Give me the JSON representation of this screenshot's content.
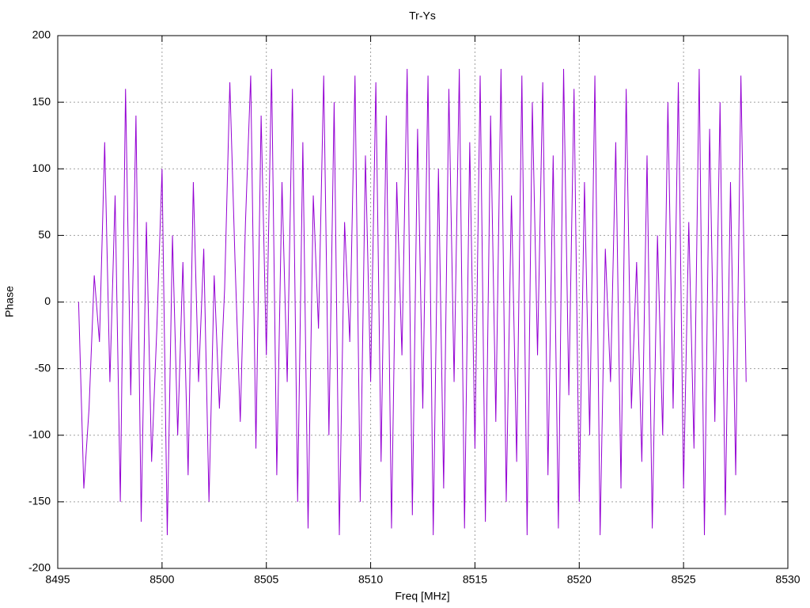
{
  "chart_data": {
    "type": "line",
    "title": "Tr-Ys",
    "x_label": "Freq [MHz]",
    "y_label": "Phase",
    "x": [
      8496,
      8496.25,
      8496.5,
      8496.75,
      8497,
      8497.25,
      8497.5,
      8497.75,
      8498,
      8498.25,
      8498.5,
      8498.75,
      8499,
      8499.25,
      8499.5,
      8499.75,
      8500,
      8500.25,
      8500.5,
      8500.75,
      8501,
      8501.25,
      8501.5,
      8501.75,
      8502,
      8502.25,
      8502.5,
      8502.75,
      8503,
      8503.25,
      8503.5,
      8503.75,
      8504,
      8504.25,
      8504.5,
      8504.75,
      8505,
      8505.25,
      8505.5,
      8505.75,
      8506,
      8506.25,
      8506.5,
      8506.75,
      8507,
      8507.25,
      8507.5,
      8507.75,
      8508,
      8508.25,
      8508.5,
      8508.75,
      8509,
      8509.25,
      8509.5,
      8509.75,
      8510,
      8510.25,
      8510.5,
      8510.75,
      8511,
      8511.25,
      8511.5,
      8511.75,
      8512,
      8512.25,
      8512.5,
      8512.75,
      8513,
      8513.25,
      8513.5,
      8513.75,
      8514,
      8514.25,
      8514.5,
      8514.75,
      8515,
      8515.25,
      8515.5,
      8515.75,
      8516,
      8516.25,
      8516.5,
      8516.75,
      8517,
      8517.25,
      8517.5,
      8517.75,
      8518,
      8518.25,
      8518.5,
      8518.75,
      8519,
      8519.25,
      8519.5,
      8519.75,
      8520,
      8520.25,
      8520.5,
      8520.75,
      8521,
      8521.25,
      8521.5,
      8521.75,
      8522,
      8522.25,
      8522.5,
      8522.75,
      8523,
      8523.25,
      8523.5,
      8523.75,
      8524,
      8524.25,
      8524.5,
      8524.75,
      8525,
      8525.25,
      8525.5,
      8525.75,
      8526,
      8526.25,
      8526.5,
      8526.75,
      8527,
      8527.25,
      8527.5,
      8527.75,
      8528
    ],
    "series": [
      {
        "color": "#9400d3",
        "values": [
          0,
          -140,
          -80,
          20,
          -30,
          120,
          -60,
          80,
          -150,
          160,
          -70,
          140,
          -165,
          60,
          -120,
          -20,
          100,
          -175,
          50,
          -100,
          30,
          -130,
          90,
          -60,
          40,
          -150,
          20,
          -80,
          10,
          165,
          30,
          -90,
          60,
          170,
          -110,
          140,
          -40,
          175,
          -130,
          90,
          -60,
          160,
          -150,
          120,
          -170,
          80,
          -20,
          170,
          -100,
          150,
          -175,
          60,
          -30,
          170,
          -150,
          110,
          -60,
          165,
          -120,
          140,
          -170,
          90,
          -40,
          175,
          -160,
          130,
          -80,
          170,
          -175,
          100,
          -140,
          160,
          -60,
          175,
          -170,
          120,
          -110,
          170,
          -165,
          140,
          -90,
          175,
          -150,
          80,
          -120,
          170,
          -175,
          150,
          -40,
          165,
          -130,
          110,
          -170,
          175,
          -70,
          160,
          -150,
          90,
          -100,
          170,
          -175,
          40,
          -60,
          120,
          -140,
          160,
          -80,
          30,
          -120,
          110,
          -170,
          50,
          -100,
          150,
          -80,
          165,
          -140,
          60,
          -110,
          175,
          -175,
          130,
          -90,
          150,
          -160,
          90,
          -130,
          170,
          -60
        ]
      }
    ],
    "xlim": [
      8495,
      8530
    ],
    "xticks": [
      8495,
      8500,
      8505,
      8510,
      8515,
      8520,
      8525,
      8530
    ],
    "ylim": [
      -200,
      200
    ],
    "yticks": [
      -200,
      -150,
      -100,
      -50,
      0,
      50,
      100,
      150,
      200
    ],
    "grid": true
  }
}
